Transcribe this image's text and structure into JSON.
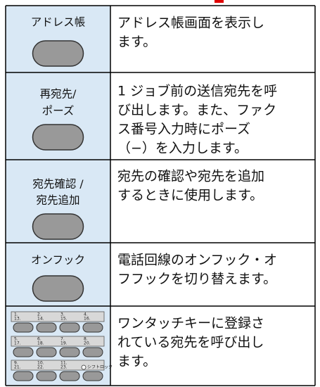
{
  "rows": [
    {
      "label": [
        "アドレス帳"
      ],
      "description": [
        "アドレス帳画面を表示し",
        "ます。"
      ]
    },
    {
      "label": [
        "再宛先/",
        "ポーズ"
      ],
      "description": [
        "1 ジョブ前の送信宛先を呼",
        "び出します。また、ファク",
        "ス番号入力時にポーズ",
        "（−）を入力します。"
      ]
    },
    {
      "label": [
        "宛先確認 /",
        "宛先追加"
      ],
      "description": [
        "宛先の確認や宛先を追加",
        "するときに使用します。"
      ]
    },
    {
      "label": [
        "オンフック"
      ],
      "description": [
        "電話回線のオンフック・オ",
        "フフックを切り替えます。"
      ]
    },
    {
      "description": [
        "ワンタッチキーに登録さ",
        "れている宛先を呼び出し",
        "ます。"
      ]
    }
  ],
  "keypad": {
    "strips": [
      {
        "top": [
          "1.",
          "2.",
          "3.",
          "4."
        ],
        "bottom": [
          "13.",
          "14.",
          "15.",
          "16."
        ]
      },
      {
        "top": [
          "5.",
          "6.",
          "7.",
          "8."
        ],
        "bottom": [
          "17.",
          "18.",
          "19.",
          "20."
        ]
      },
      {
        "top": [
          "9.",
          "10.",
          "11."
        ],
        "bottom": [
          "21.",
          "22.",
          "23."
        ]
      }
    ],
    "shift_lock": "シフトロック"
  }
}
